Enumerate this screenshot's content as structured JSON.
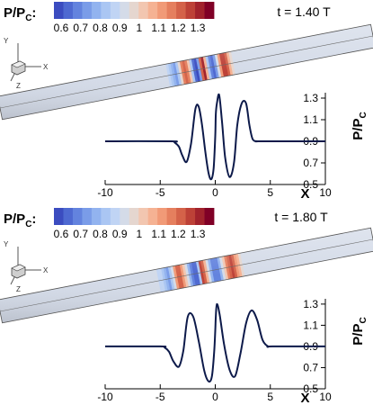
{
  "colorbar": {
    "label_main": "P/P",
    "label_sub": "C",
    "label_colon": ":",
    "colors": [
      "#3b4cc0",
      "#4e69d1",
      "#6383de",
      "#7a9ce8",
      "#92b3ef",
      "#aac6f3",
      "#c0d4f4",
      "#d4dbe8",
      "#e5d6cf",
      "#f2c6b0",
      "#f5b293",
      "#f19a77",
      "#e57f5e",
      "#d46249",
      "#bd4137",
      "#a1222c",
      "#800026"
    ],
    "tick_labels": [
      "0.6",
      "0.7",
      "0.8",
      "0.9",
      "1",
      "1.1",
      "1.2",
      "1.3"
    ]
  },
  "axes_triad": {
    "x_label": "X",
    "y_label": "Y",
    "z_label": "Z"
  },
  "panels": [
    {
      "time_label": "t = 1.40 T"
    },
    {
      "time_label": "t = 1.80 T"
    }
  ],
  "chart_data": [
    {
      "type": "line",
      "title": "t = 1.40 T",
      "xlabel": "X",
      "ylabel_main": "P/P",
      "ylabel_sub": "C",
      "xlim": [
        -10,
        10
      ],
      "ylim": [
        0.5,
        1.35
      ],
      "xticks": [
        -10,
        -5,
        0,
        5,
        10
      ],
      "yticks": [
        0.5,
        0.7,
        0.9,
        1.1,
        1.3
      ],
      "ytick_labels": [
        "0.5",
        "0.7",
        "0.9",
        "1.1",
        "1.3"
      ],
      "series": [
        {
          "color": "#0d1a4a",
          "x": [
            -10,
            -4,
            -3.7,
            -3.3,
            -3.0,
            -2.6,
            -2.2,
            -1.8,
            -1.5,
            -1.2,
            -0.9,
            -0.6,
            -0.35,
            -0.15,
            0.0,
            0.05,
            0.15,
            0.35,
            0.6,
            0.9,
            1.3,
            1.7,
            2.0,
            2.4,
            2.8,
            3.1,
            3.4,
            3.8,
            4.2,
            10
          ],
          "y": [
            0.9,
            0.9,
            0.89,
            0.85,
            0.77,
            0.71,
            0.88,
            1.2,
            1.22,
            1.05,
            0.8,
            0.6,
            0.55,
            0.65,
            0.95,
            1.15,
            1.25,
            1.33,
            1.1,
            0.75,
            0.57,
            0.7,
            1.05,
            1.25,
            1.25,
            1.05,
            0.92,
            0.9,
            0.9,
            0.9
          ]
        }
      ]
    },
    {
      "type": "line",
      "title": "t = 1.80 T",
      "xlabel": "X",
      "ylabel_main": "P/P",
      "ylabel_sub": "C",
      "xlim": [
        -10,
        10
      ],
      "ylim": [
        0.5,
        1.35
      ],
      "xticks": [
        -10,
        -5,
        0,
        5,
        10
      ],
      "yticks": [
        0.5,
        0.7,
        0.9,
        1.1,
        1.3
      ],
      "ytick_labels": [
        "0.5",
        "0.7",
        "0.9",
        "1.1",
        "1.3"
      ],
      "series": [
        {
          "color": "#0d1a4a",
          "x": [
            -10,
            -5,
            -4.6,
            -4.2,
            -3.8,
            -3.3,
            -2.9,
            -2.5,
            -2.0,
            -1.5,
            -1.0,
            -0.6,
            -0.3,
            -0.1,
            0.0,
            0.05,
            0.15,
            0.4,
            0.8,
            1.3,
            1.8,
            2.3,
            2.8,
            3.3,
            3.8,
            4.3,
            4.8,
            5.2,
            10
          ],
          "y": [
            0.9,
            0.9,
            0.89,
            0.85,
            0.76,
            0.71,
            0.86,
            1.18,
            1.18,
            0.95,
            0.67,
            0.57,
            0.62,
            0.85,
            1.05,
            1.18,
            1.3,
            1.2,
            0.92,
            0.68,
            0.62,
            0.84,
            1.12,
            1.24,
            1.15,
            0.96,
            0.9,
            0.9,
            0.9
          ]
        }
      ]
    }
  ]
}
